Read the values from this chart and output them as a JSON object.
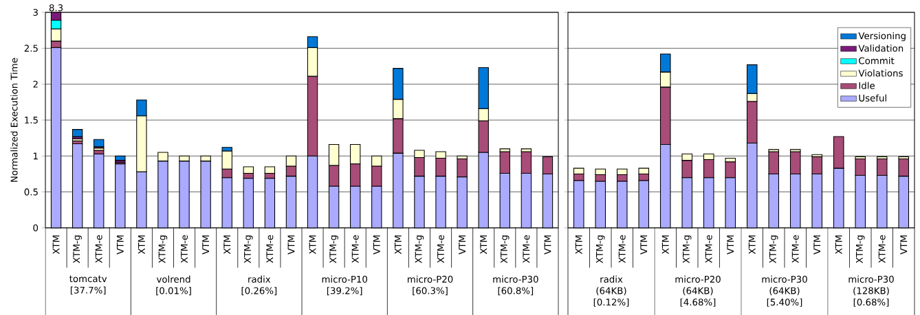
{
  "chart_data": [
    {
      "type": "bar",
      "stacked": true,
      "ylabel": "Normalized Execution Time",
      "ylim": [
        0,
        3
      ],
      "yticks": [
        0,
        0.5,
        1,
        1.5,
        2,
        2.5,
        3
      ],
      "grid": "y",
      "legend": false,
      "categories": [
        "XTM",
        "XTM-g",
        "XTM-e",
        "VTM",
        "XTM",
        "XTM-g",
        "XTM-e",
        "VTM",
        "XTM",
        "XTM-g",
        "XTM-e",
        "VTM",
        "XTM",
        "XTM-g",
        "XTM-e",
        "VTM",
        "XTM",
        "XTM-g",
        "XTM-e",
        "VTM",
        "XTM",
        "XTM-g",
        "XTM-e",
        "VTM"
      ],
      "series": [
        {
          "color": "#aaaaff",
          "values": [
            2.51,
            1.17,
            1.03,
            0.89,
            0.78,
            0.93,
            0.93,
            0.93,
            0.7,
            0.69,
            0.69,
            0.72,
            1.0,
            0.58,
            0.58,
            0.58,
            1.04,
            0.72,
            0.72,
            0.71,
            1.05,
            0.76,
            0.76,
            0.75
          ]
        },
        {
          "color": "#a84c78",
          "values": [
            0.09,
            0.04,
            0.05,
            0.02,
            0,
            0,
            0,
            0,
            0.12,
            0.07,
            0.07,
            0.14,
            1.11,
            0.29,
            0.31,
            0.28,
            0.48,
            0.26,
            0.25,
            0.25,
            0.44,
            0.3,
            0.3,
            0.24
          ]
        },
        {
          "color": "#ffffd0",
          "values": [
            0.17,
            0.03,
            0.03,
            0,
            0.78,
            0.12,
            0.07,
            0.07,
            0.25,
            0.09,
            0.09,
            0.14,
            0.4,
            0.29,
            0.27,
            0.14,
            0.27,
            0.1,
            0.09,
            0.04,
            0.17,
            0.04,
            0.04,
            0
          ]
        },
        {
          "color": "#00ffff",
          "values": [
            0.12,
            0,
            0,
            0,
            0,
            0,
            0,
            0,
            0,
            0,
            0,
            0,
            0,
            0,
            0,
            0,
            0,
            0,
            0,
            0,
            0,
            0,
            0,
            0
          ]
        },
        {
          "color": "#7a1a78",
          "values": [
            0.11,
            0.03,
            0.02,
            0.03,
            0,
            0,
            0,
            0,
            0,
            0,
            0,
            0,
            0,
            0,
            0,
            0,
            0,
            0,
            0,
            0,
            0,
            0,
            0,
            0
          ]
        },
        {
          "color": "#0078d7",
          "values": [
            null,
            0.1,
            0.1,
            0.06,
            0.22,
            0,
            0,
            0,
            0.05,
            0,
            0,
            0,
            0.15,
            0,
            0,
            0,
            0.43,
            0,
            0,
            0,
            0.57,
            0,
            0,
            0
          ]
        }
      ],
      "annotations": [
        {
          "text": "8.3",
          "x": "XTM",
          "y": 3
        },
        "tomcatv [37.7%]",
        "volrend [0.01%]",
        "radix [0.26%]",
        "micro-P10 [39.2%]",
        "micro-P20 [60.3%]",
        "micro-P30 [60.8%]"
      ]
    },
    {
      "type": "bar",
      "stacked": true,
      "ylim": [
        0,
        3
      ],
      "yticks": [
        0,
        0.5,
        1,
        1.5,
        2,
        2.5,
        3
      ],
      "grid": "y",
      "legend": "top right",
      "tick_labels": "x",
      "categories": [
        "XTM",
        "XTM-g",
        "XTM-e",
        "VTM",
        "XTM",
        "XTM-g",
        "XTM-e",
        "VTM",
        "XTM",
        "XTM-g",
        "XTM-e",
        "VTM",
        "XTM",
        "XTM-g",
        "XTM-e",
        "VTM"
      ],
      "series": [
        {
          "name": "Useful",
          "color": "#aaaaff",
          "values": [
            0.66,
            0.65,
            0.65,
            0.66,
            1.16,
            0.7,
            0.7,
            0.7,
            1.18,
            0.75,
            0.75,
            0.75,
            0.83,
            0.73,
            0.73,
            0.72
          ]
        },
        {
          "name": "Idle",
          "color": "#a84c78",
          "values": [
            0.09,
            0.09,
            0.09,
            0.09,
            0.8,
            0.24,
            0.25,
            0.22,
            0.58,
            0.31,
            0.31,
            0.24,
            0.44,
            0.23,
            0.23,
            0.24
          ]
        },
        {
          "name": "Violations",
          "color": "#ffffd0",
          "values": [
            0.08,
            0.08,
            0.08,
            0.08,
            0.21,
            0.09,
            0.08,
            0.05,
            0.11,
            0.03,
            0.03,
            0.03,
            null,
            0.03,
            0.03,
            0.03
          ]
        },
        {
          "name": "Commit",
          "color": "#00ffff",
          "values": [
            0,
            0,
            0,
            0,
            0,
            0,
            0,
            0,
            0,
            0,
            0,
            0,
            null,
            0,
            0,
            0
          ]
        },
        {
          "name": "Validation",
          "color": "#7a1a78",
          "values": [
            0,
            0,
            0,
            0,
            0,
            0,
            0,
            0,
            0,
            0,
            0,
            0,
            null,
            0,
            0,
            0
          ]
        },
        {
          "name": "Versioning",
          "color": "#0078d7",
          "values": [
            0,
            0,
            0,
            0,
            0.25,
            0,
            0,
            0,
            0.4,
            0,
            0,
            0,
            null,
            0,
            0,
            0
          ]
        }
      ],
      "annotations": [
        "radix (64KB) [0.12%]",
        "micro-P20 (64KB) [4.68%]",
        "micro-P30 (64KB) [5.40%]",
        "micro-P30 (128KB) [0.68%]"
      ]
    }
  ]
}
